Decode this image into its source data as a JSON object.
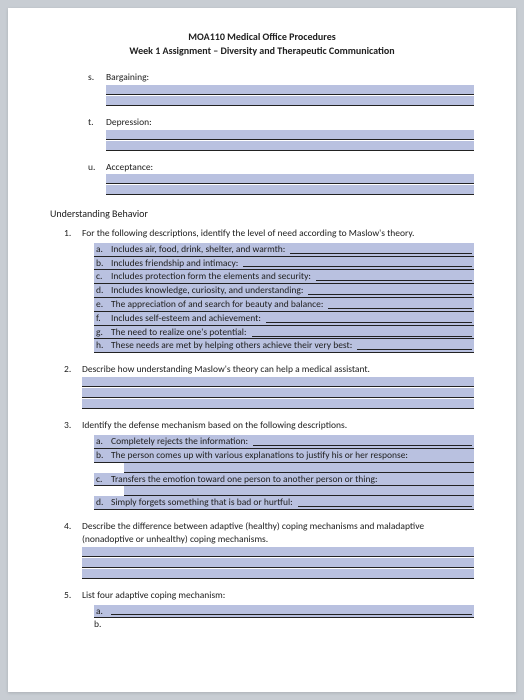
{
  "header": {
    "line1": "MOA110 Medical Office Procedures",
    "line2": "Week 1 Assignment – Diversity and Therapeutic Communication"
  },
  "top_items": [
    {
      "letter": "s.",
      "label": "Bargaining:"
    },
    {
      "letter": "t.",
      "label": "Depression:"
    },
    {
      "letter": "u.",
      "label": "Acceptance:"
    }
  ],
  "section_heading": "Understanding Behavior",
  "q1": {
    "num": "1.",
    "text": "For the following descriptions, identify the level of need according to Maslow's theory.",
    "items": [
      {
        "letter": "a.",
        "text": "Includes air, food, drink, shelter, and warmth:"
      },
      {
        "letter": "b.",
        "text": "Includes friendship and intimacy:"
      },
      {
        "letter": "c.",
        "text": "Includes protection form the elements and security:"
      },
      {
        "letter": "d.",
        "text": "Includes knowledge, curiosity, and understanding:"
      },
      {
        "letter": "e.",
        "text": "The appreciation of and search for beauty and balance:"
      },
      {
        "letter": "f.",
        "text": "Includes self-esteem and achievement:"
      },
      {
        "letter": "g.",
        "text": "The need to realize one's potential:"
      },
      {
        "letter": "h.",
        "text": "These needs are met by helping others achieve their very best:"
      }
    ]
  },
  "q2": {
    "num": "2.",
    "text": "Describe how understanding Maslow's theory can help a medical assistant."
  },
  "q3": {
    "num": "3.",
    "text": "Identify the defense mechanism based on the following descriptions.",
    "items": [
      {
        "letter": "a.",
        "text": "Completely rejects the information:",
        "trail": true
      },
      {
        "letter": "b.",
        "text": "The person comes up with various explanations to justify his or her response:",
        "trail": false,
        "extra_line": true
      },
      {
        "letter": "c.",
        "text": "Transfers the emotion toward one person to another person or thing:",
        "trail": false,
        "extra_line": true
      },
      {
        "letter": "d.",
        "text": "Simply forgets something that is bad or hurtful:",
        "trail": true
      }
    ]
  },
  "q4": {
    "num": "4.",
    "text": "Describe the difference between adaptive (healthy) coping mechanisms and maladaptive (nonadoptive or unhealthy) coping mechanisms."
  },
  "q5": {
    "num": "5.",
    "text": "List four adaptive coping mechanism:",
    "items": [
      {
        "letter": "a."
      },
      {
        "letter": "b."
      }
    ]
  },
  "colors": {
    "highlight": "#b9c1e0",
    "page_bg": "#ffffff",
    "outer_bg": "#c8cdd3",
    "text": "#202020",
    "rule": "#222222"
  }
}
